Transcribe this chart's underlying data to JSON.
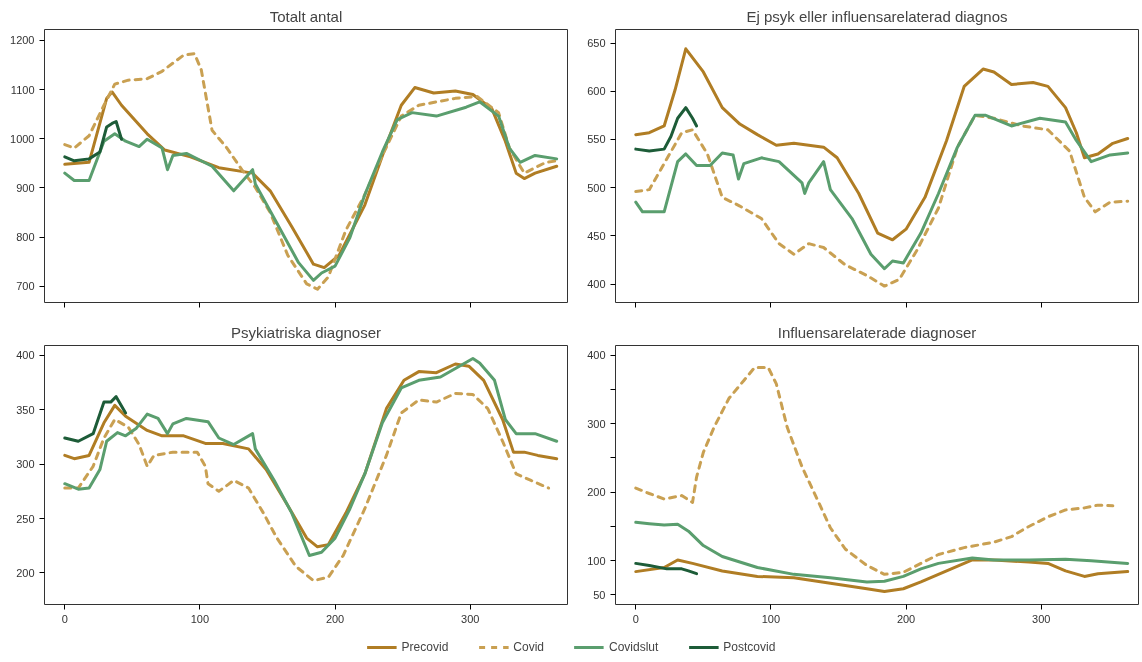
{
  "chart_data": [
    {
      "type": "line",
      "title": "Totalt antal",
      "xlim": [
        -15,
        372
      ],
      "xticks": [
        0,
        100,
        200,
        300
      ],
      "ylim": [
        667,
        1222
      ],
      "yticks": [
        700,
        800,
        900,
        1000,
        1100,
        1200
      ],
      "tick_labels": "y",
      "grid": false,
      "series": [
        {
          "color": "#b07d24",
          "line_style": "solid",
          "x": [
            0,
            18,
            31,
            35,
            42,
            61,
            74,
            93,
            114,
            139,
            152,
            168,
            184,
            192,
            203,
            222,
            238,
            249,
            259,
            273,
            289,
            302,
            316,
            326,
            334,
            340,
            348,
            364
          ],
          "values": [
            948,
            952,
            1082,
            1095,
            1068,
            1010,
            977,
            963,
            941,
            930,
            894,
            821,
            745,
            738,
            763,
            865,
            988,
            1068,
            1104,
            1093,
            1097,
            1090,
            1061,
            995,
            930,
            919,
            930,
            944
          ]
        },
        {
          "color": "#c9a052",
          "line_style": "dashed",
          "x": [
            0,
            7,
            18,
            29,
            37,
            47,
            61,
            72,
            88,
            96,
            101,
            109,
            120,
            131,
            141,
            152,
            165,
            179,
            187,
            195,
            208,
            222,
            235,
            249,
            262,
            289,
            305,
            321,
            329,
            340,
            356,
            364
          ],
          "values": [
            988,
            981,
            1006,
            1068,
            1111,
            1119,
            1122,
            1137,
            1170,
            1173,
            1140,
            1017,
            981,
            937,
            901,
            850,
            763,
            705,
            694,
            719,
            814,
            886,
            966,
            1046,
            1068,
            1082,
            1086,
            1053,
            981,
            930,
            952,
            955
          ]
        },
        {
          "color": "#5a9e6e",
          "line_style": "solid",
          "x": [
            0,
            7,
            18,
            29,
            37,
            45,
            55,
            61,
            72,
            76,
            80,
            90,
            109,
            125,
            139,
            141,
            157,
            173,
            184,
            190,
            200,
            211,
            222,
            235,
            246,
            257,
            275,
            297,
            307,
            321,
            329,
            337,
            348,
            364
          ],
          "values": [
            930,
            915,
            915,
            995,
            1010,
            995,
            984,
            999,
            981,
            937,
            966,
            970,
            944,
            894,
            937,
            908,
            828,
            748,
            712,
            727,
            741,
            799,
            886,
            973,
            1039,
            1053,
            1046,
            1064,
            1075,
            1046,
            981,
            952,
            966,
            959
          ]
        },
        {
          "color": "#1d5c38",
          "line_style": "solid",
          "x": [
            0,
            7,
            18,
            26,
            31,
            35,
            38,
            42
          ],
          "values": [
            963,
            955,
            959,
            973,
            1024,
            1031,
            1035,
            999
          ]
        }
      ]
    },
    {
      "type": "line",
      "title": "Ej psyk eller influensarelaterad diagnos",
      "xlim": [
        -15,
        372
      ],
      "xticks": [
        0,
        100,
        200,
        300
      ],
      "ylim": [
        381,
        664
      ],
      "yticks": [
        400,
        450,
        500,
        550,
        600,
        650
      ],
      "tick_labels": "y",
      "grid": false,
      "series": [
        {
          "color": "#b07d24",
          "line_style": "solid",
          "x": [
            0,
            10,
            21,
            29,
            37,
            50,
            64,
            77,
            90,
            104,
            117,
            139,
            149,
            165,
            179,
            190,
            200,
            214,
            230,
            243,
            257,
            265,
            278,
            294,
            305,
            318,
            326,
            332,
            342,
            353,
            364
          ],
          "values": [
            555,
            557,
            564,
            601,
            644,
            620,
            583,
            566,
            555,
            544,
            546,
            542,
            531,
            494,
            453,
            446,
            457,
            490,
            549,
            605,
            623,
            620,
            607,
            609,
            605,
            583,
            557,
            531,
            535,
            546,
            551
          ]
        },
        {
          "color": "#c9a052",
          "line_style": "dashed",
          "x": [
            0,
            10,
            21,
            34,
            42,
            53,
            64,
            77,
            93,
            106,
            117,
            128,
            139,
            155,
            171,
            184,
            195,
            208,
            224,
            238,
            251,
            265,
            286,
            305,
            321,
            332,
            340,
            351,
            364
          ],
          "values": [
            496,
            498,
            525,
            557,
            560,
            535,
            490,
            481,
            468,
            442,
            431,
            442,
            438,
            420,
            409,
            398,
            405,
            435,
            479,
            542,
            575,
            572,
            564,
            560,
            538,
            490,
            475,
            485,
            486
          ]
        },
        {
          "color": "#5a9e6e",
          "line_style": "solid",
          "x": [
            0,
            5,
            21,
            31,
            37,
            45,
            55,
            64,
            72,
            76,
            80,
            93,
            106,
            123,
            125,
            128,
            139,
            144,
            160,
            174,
            184,
            190,
            198,
            211,
            224,
            238,
            251,
            259,
            278,
            299,
            318,
            326,
            337,
            351,
            364
          ],
          "values": [
            485,
            475,
            475,
            527,
            535,
            523,
            523,
            536,
            534,
            509,
            525,
            531,
            527,
            505,
            494,
            505,
            527,
            498,
            468,
            431,
            416,
            424,
            422,
            453,
            494,
            542,
            575,
            575,
            564,
            572,
            568,
            549,
            527,
            534,
            536
          ]
        },
        {
          "color": "#1d5c38",
          "line_style": "solid",
          "x": [
            0,
            10,
            21,
            26,
            31,
            37,
            42,
            45
          ],
          "values": [
            540,
            538,
            540,
            553,
            572,
            583,
            572,
            564
          ]
        }
      ]
    },
    {
      "type": "line",
      "title": "Psykiatriska diagnoser",
      "xlim": [
        -15,
        372
      ],
      "xticks": [
        0,
        100,
        200,
        300
      ],
      "ylim": [
        171,
        409
      ],
      "yticks": [
        200,
        250,
        300,
        350,
        400
      ],
      "grid": false,
      "series": [
        {
          "color": "#b07d24",
          "line_style": "solid",
          "x": [
            0,
            7,
            18,
            29,
            37,
            45,
            61,
            72,
            88,
            104,
            117,
            136,
            149,
            165,
            179,
            187,
            195,
            208,
            222,
            238,
            251,
            262,
            275,
            289,
            299,
            310,
            324,
            332,
            340,
            350,
            364
          ],
          "values": [
            308,
            305,
            308,
            338,
            354,
            344,
            331,
            326,
            326,
            319,
            319,
            314,
            295,
            262,
            232,
            224,
            226,
            255,
            291,
            351,
            377,
            385,
            384,
            392,
            390,
            377,
            341,
            311,
            311,
            308,
            305
          ]
        },
        {
          "color": "#c9a052",
          "line_style": "dashed",
          "x": [
            0,
            10,
            21,
            29,
            37,
            47,
            55,
            61,
            66,
            80,
            98,
            104,
            106,
            114,
            125,
            136,
            147,
            157,
            171,
            184,
            195,
            206,
            222,
            238,
            249,
            262,
            275,
            289,
            302,
            313,
            324,
            334,
            345,
            358
          ],
          "values": [
            278,
            278,
            298,
            324,
            341,
            334,
            318,
            298,
            308,
            311,
            311,
            298,
            282,
            275,
            285,
            278,
            255,
            232,
            206,
            193,
            196,
            216,
            259,
            308,
            347,
            359,
            357,
            365,
            364,
            351,
            321,
            291,
            285,
            278
          ]
        },
        {
          "color": "#5a9e6e",
          "line_style": "solid",
          "x": [
            0,
            10,
            18,
            26,
            31,
            39,
            45,
            53,
            61,
            69,
            76,
            80,
            90,
            106,
            114,
            125,
            139,
            141,
            155,
            168,
            181,
            190,
            200,
            211,
            222,
            235,
            249,
            262,
            278,
            292,
            302,
            307,
            318,
            326,
            334,
            348,
            364
          ],
          "values": [
            282,
            277,
            278,
            295,
            321,
            329,
            326,
            333,
            346,
            342,
            328,
            337,
            342,
            339,
            324,
            318,
            328,
            314,
            285,
            255,
            216,
            219,
            232,
            259,
            291,
            338,
            370,
            377,
            380,
            390,
            397,
            393,
            377,
            341,
            328,
            328,
            321
          ]
        },
        {
          "color": "#1d5c38",
          "line_style": "solid",
          "x": [
            0,
            10,
            21,
            29,
            34,
            38,
            45
          ],
          "values": [
            324,
            321,
            328,
            357,
            357,
            362,
            347
          ]
        }
      ]
    },
    {
      "type": "line",
      "title": "Influensarelaterade diagnoser",
      "xlim": [
        -15,
        372
      ],
      "xticks": [
        0,
        100,
        200,
        300
      ],
      "ylim": [
        36,
        414
      ],
      "yticks": [
        50,
        100,
        {
          "value": 150,
          "label": null
        },
        200,
        {
          "value": 250,
          "label": null
        },
        300,
        {
          "value": 350,
          "label": null
        },
        400
      ],
      "grid": false,
      "legend": "bottom",
      "series": [
        {
          "name": "Precovid",
          "color": "#b07d24",
          "line_style": "solid",
          "x": [
            0,
            21,
            31,
            42,
            64,
            90,
            117,
            144,
            171,
            184,
            198,
            211,
            230,
            249,
            265,
            291,
            305,
            318,
            332,
            342,
            364
          ],
          "values": [
            84,
            90,
            101,
            96,
            85,
            77,
            75,
            67,
            59,
            55,
            59,
            69,
            85,
            101,
            101,
            98,
            96,
            85,
            77,
            81,
            84
          ]
        },
        {
          "name": "Covid",
          "color": "#c9a052",
          "line_style": "dashed",
          "x": [
            0,
            10,
            21,
            34,
            42,
            45,
            50,
            58,
            69,
            80,
            88,
            98,
            104,
            112,
            123,
            133,
            144,
            155,
            171,
            184,
            198,
            211,
            224,
            243,
            265,
            278,
            289,
            305,
            318,
            332,
            342,
            353
          ],
          "values": [
            206,
            198,
            190,
            195,
            185,
            222,
            258,
            295,
            337,
            363,
            382,
            382,
            358,
            295,
            237,
            195,
            148,
            117,
            93,
            80,
            83,
            96,
            109,
            119,
            127,
            135,
            148,
            164,
            174,
            177,
            181,
            180
          ]
        },
        {
          "name": "Covidslut",
          "color": "#5a9e6e",
          "line_style": "solid",
          "x": [
            0,
            10,
            21,
            31,
            39,
            50,
            64,
            77,
            90,
            117,
            144,
            171,
            184,
            198,
            211,
            224,
            249,
            265,
            291,
            318,
            337,
            364
          ],
          "values": [
            156,
            154,
            152,
            153,
            143,
            122,
            106,
            98,
            90,
            80,
            75,
            69,
            70,
            77,
            88,
            96,
            104,
            101,
            101,
            102,
            100,
            96
          ]
        },
        {
          "name": "Postcovid",
          "color": "#1d5c38",
          "line_style": "solid",
          "x": [
            0,
            10,
            23,
            34,
            39,
            45
          ],
          "values": [
            96,
            93,
            88,
            88,
            85,
            81
          ]
        }
      ]
    }
  ]
}
